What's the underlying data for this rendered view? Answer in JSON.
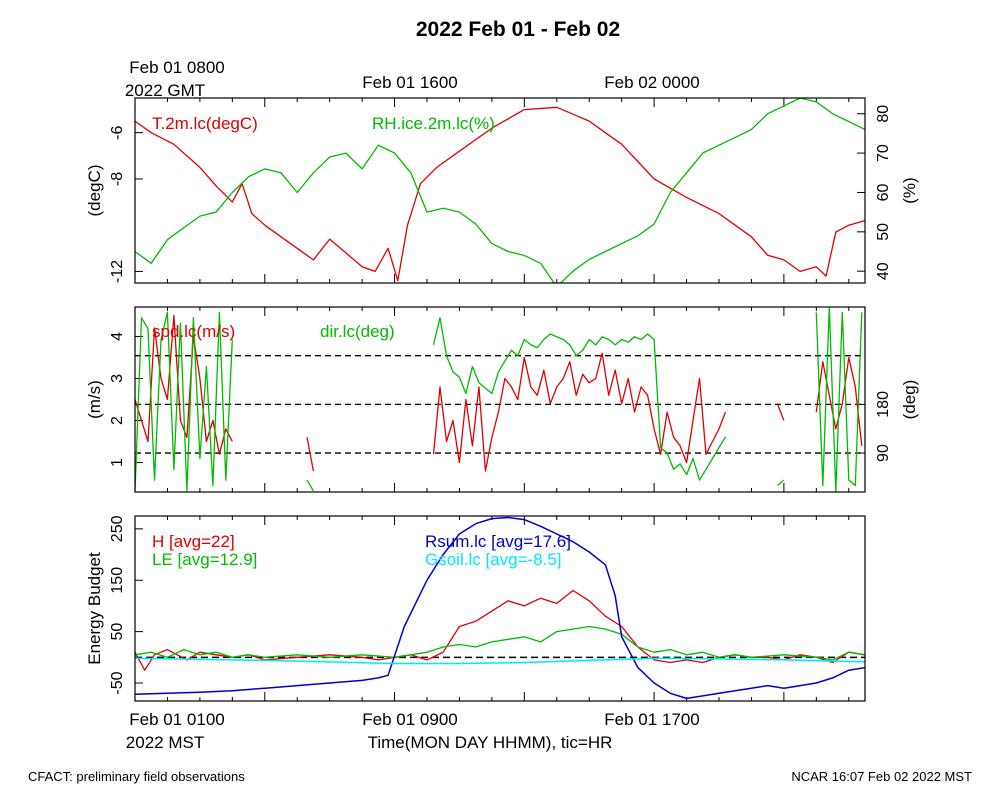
{
  "page": {
    "title": "2022 Feb 01 - Feb 02",
    "top_time_labels": [
      "Feb 01 0800",
      "Feb 01 1600",
      "Feb 02 0000"
    ],
    "top_time_sublabel": "2022 GMT",
    "bottom_time_labels": [
      "Feb 01 0100",
      "Feb 01 0900",
      "Feb 01 1700"
    ],
    "bottom_time_sublabel": "2022 MST",
    "xlabel": "Time(MON DAY HHMM), tic=HR",
    "footer_left": "CFACT: preliminary field observations",
    "footer_right": "NCAR 16:07 Feb 02 2022 MST"
  },
  "chart_data": [
    {
      "type": "line",
      "panel": "temperature-humidity",
      "x_unit": "hours since Feb 01 0100 MST",
      "xlim": [
        0,
        22.5
      ],
      "ylabel": "(degC)",
      "ylabel_right": "(%)",
      "ylim": [
        -12.5,
        -4.5
      ],
      "ylim_right": [
        37,
        84
      ],
      "yticks": [
        -12,
        -8,
        -6
      ],
      "yticks_right": [
        40,
        50,
        60,
        70,
        80
      ],
      "series": [
        {
          "name": "T.2m.lc(degC)",
          "axis": "left",
          "color": "#e00000",
          "x": [
            0,
            0.5,
            1.2,
            2,
            2.5,
            3,
            3.3,
            3.6,
            4,
            4.5,
            5,
            5.5,
            6,
            6.5,
            7,
            7.4,
            7.8,
            8.1,
            8.4,
            8.8,
            9.3,
            10,
            11,
            12,
            13,
            13.5,
            14,
            15,
            16,
            17,
            18,
            18.5,
            19,
            19.5,
            20,
            20.5,
            21,
            21.3,
            21.6,
            22,
            22.5
          ],
          "y": [
            -5.5,
            -6.0,
            -6.5,
            -7.5,
            -8.3,
            -9.0,
            -8.2,
            -9.5,
            -10.0,
            -10.5,
            -11.0,
            -11.5,
            -10.6,
            -11.2,
            -11.8,
            -12.0,
            -11.0,
            -12.4,
            -10.0,
            -8.2,
            -7.5,
            -6.8,
            -5.8,
            -5.0,
            -4.9,
            -5.2,
            -5.5,
            -6.5,
            -8.0,
            -8.8,
            -9.5,
            -10.0,
            -10.5,
            -11.3,
            -11.5,
            -12.0,
            -11.8,
            -12.2,
            -10.3,
            -10.0,
            -9.8
          ]
        },
        {
          "name": "RH.ice.2m.lc(%)",
          "axis": "right",
          "color": "#00bb00",
          "x": [
            0,
            0.5,
            1,
            1.5,
            2,
            2.5,
            3,
            3.5,
            4,
            4.5,
            5,
            5.5,
            6,
            6.5,
            7,
            7.5,
            8,
            8.5,
            9,
            9.5,
            10,
            10.5,
            11,
            11.5,
            12,
            12.5,
            13,
            13.5,
            14,
            14.5,
            15,
            15.5,
            16,
            16.5,
            17,
            17.5,
            18,
            18.5,
            19,
            19.5,
            20,
            20.5,
            21,
            21.5,
            22,
            22.5
          ],
          "y": [
            45,
            42,
            48,
            51,
            54,
            55,
            60,
            64,
            66,
            65,
            60,
            65,
            69,
            70,
            66,
            72,
            70,
            65,
            55,
            56,
            55,
            52,
            47,
            45,
            44,
            42,
            36,
            40,
            43,
            45,
            47,
            49,
            52,
            60,
            65,
            70,
            72,
            74,
            76,
            80,
            82,
            84,
            83,
            80,
            78,
            76
          ]
        }
      ]
    },
    {
      "type": "line",
      "panel": "wind",
      "x_unit": "hours since Feb 01 0100 MST",
      "xlim": [
        0,
        22.5
      ],
      "ylabel": "(m/s)",
      "ylabel_right": "(deg)",
      "ylim": [
        0.3,
        4.7
      ],
      "ylim_right": [
        18,
        360
      ],
      "yticks": [
        1,
        2,
        3,
        4
      ],
      "yticks_right": [
        90,
        180
      ],
      "reference_lines_deg": [
        90,
        180,
        270
      ],
      "series": [
        {
          "name": "spd.lc(m/s)",
          "axis": "left",
          "color": "#e00000",
          "x": [
            0,
            0.2,
            0.4,
            0.6,
            0.8,
            1.0,
            1.2,
            1.4,
            1.6,
            1.8,
            2.0,
            2.2,
            2.4,
            2.6,
            2.8,
            3.0,
            null,
            5.3,
            5.5,
            null,
            9.2,
            9.4,
            9.6,
            9.8,
            10.0,
            10.2,
            10.4,
            10.6,
            10.8,
            11.0,
            11.2,
            11.4,
            11.6,
            11.8,
            12.0,
            12.2,
            12.4,
            12.6,
            12.8,
            13.0,
            13.2,
            13.4,
            13.6,
            13.8,
            14.0,
            14.2,
            14.4,
            14.6,
            14.8,
            15.0,
            15.2,
            15.4,
            15.6,
            15.8,
            16.0,
            16.2,
            16.4,
            16.6,
            16.8,
            17.0,
            17.2,
            17.4,
            17.6,
            17.8,
            18.0,
            18.2,
            null,
            19.8,
            20.0,
            null,
            21.0,
            21.2,
            21.4,
            21.6,
            21.8,
            22.0,
            22.2,
            22.4
          ],
          "y": [
            2.5,
            2.0,
            1.5,
            4.2,
            3.0,
            2.5,
            4.5,
            2.0,
            1.6,
            4.0,
            3.0,
            1.5,
            2.0,
            1.2,
            1.8,
            1.5,
            null,
            1.6,
            0.8,
            null,
            1.2,
            2.8,
            1.5,
            2.0,
            1.0,
            2.5,
            1.4,
            2.8,
            0.8,
            1.6,
            2.2,
            3.0,
            2.8,
            2.5,
            3.5,
            2.8,
            2.6,
            3.2,
            2.4,
            2.8,
            3.0,
            3.4,
            2.6,
            3.1,
            2.9,
            3.0,
            3.6,
            2.6,
            3.2,
            2.4,
            3.0,
            2.2,
            2.8,
            2.6,
            1.8,
            1.2,
            2.2,
            1.6,
            1.4,
            1.0,
            2.0,
            3.0,
            1.2,
            1.5,
            1.8,
            2.2,
            null,
            2.4,
            2.0,
            null,
            2.2,
            3.4,
            2.6,
            1.8,
            2.4,
            3.5,
            2.8,
            1.4
          ],
          "lw": 1.3
        },
        {
          "name": "dir.lc(deg)",
          "axis": "right",
          "color": "#00bb00",
          "x": [
            0,
            0.2,
            0.4,
            0.6,
            0.8,
            1.0,
            1.2,
            1.4,
            1.6,
            1.8,
            2.0,
            2.2,
            2.4,
            2.6,
            2.8,
            3.0,
            null,
            5.3,
            5.5,
            null,
            9.2,
            9.4,
            9.6,
            9.8,
            10.0,
            10.2,
            10.4,
            10.6,
            10.8,
            11.0,
            11.2,
            11.4,
            11.6,
            11.8,
            12.0,
            12.2,
            12.4,
            12.6,
            12.8,
            13.0,
            13.2,
            13.4,
            13.6,
            13.8,
            14.0,
            14.2,
            14.4,
            14.6,
            14.8,
            15.0,
            15.2,
            15.4,
            15.6,
            15.8,
            16.0,
            16.2,
            16.4,
            16.6,
            16.8,
            17.0,
            17.2,
            17.4,
            17.6,
            17.8,
            18.0,
            18.2,
            null,
            19.8,
            20.0,
            null,
            21.0,
            21.2,
            21.4,
            21.6,
            21.8,
            22.0,
            22.2,
            22.4
          ],
          "y": [
            20,
            340,
            320,
            40,
            300,
            350,
            60,
            330,
            20,
            340,
            80,
            250,
            30,
            350,
            40,
            300,
            null,
            40,
            20,
            null,
            290,
            340,
            270,
            240,
            230,
            200,
            250,
            220,
            210,
            200,
            240,
            260,
            280,
            270,
            300,
            290,
            285,
            300,
            310,
            305,
            300,
            290,
            270,
            280,
            300,
            290,
            305,
            300,
            290,
            300,
            295,
            305,
            300,
            310,
            300,
            100,
            90,
            60,
            70,
            50,
            80,
            40,
            60,
            80,
            100,
            120,
            null,
            30,
            40,
            null,
            350,
            30,
            360,
            20,
            350,
            40,
            30,
            350
          ],
          "lw": 1.3
        }
      ]
    },
    {
      "type": "line",
      "panel": "energy-budget",
      "x_unit": "hours since Feb 01 0100 MST",
      "xlim": [
        0,
        22.5
      ],
      "ylabel": "Energy Budget",
      "ylim": [
        -85,
        275
      ],
      "yticks": [
        -50,
        50,
        150,
        250
      ],
      "reference_line": 0,
      "series": [
        {
          "name": "H [avg=22]",
          "axis": "left",
          "color": "#e00000",
          "x": [
            0,
            0.3,
            0.6,
            1,
            1.3,
            1.6,
            2,
            2.5,
            3,
            3.5,
            4,
            5,
            6,
            7,
            7.5,
            8,
            8.5,
            9,
            9.5,
            10,
            10.5,
            11,
            11.5,
            12,
            12.5,
            13,
            13.5,
            14,
            14.5,
            15,
            15.5,
            16,
            16.5,
            17,
            17.5,
            18,
            18.5,
            19,
            19.5,
            20,
            20.5,
            21,
            21.5,
            22,
            22.5
          ],
          "y": [
            10,
            -25,
            5,
            15,
            5,
            -5,
            10,
            5,
            0,
            5,
            -5,
            0,
            5,
            0,
            -5,
            0,
            5,
            -5,
            10,
            60,
            70,
            90,
            110,
            100,
            115,
            105,
            130,
            110,
            80,
            60,
            20,
            -5,
            -10,
            -5,
            -10,
            0,
            5,
            0,
            0,
            -5,
            5,
            0,
            -10,
            10,
            5
          ]
        },
        {
          "name": "LE [avg=12.9]",
          "axis": "left",
          "color": "#00bb00",
          "x": [
            0,
            0.5,
            1,
            1.5,
            2,
            2.5,
            3,
            3.5,
            4,
            5,
            6,
            7,
            8,
            8.5,
            9,
            9.5,
            10,
            10.5,
            11,
            11.5,
            12,
            12.5,
            13,
            13.5,
            14,
            14.5,
            15,
            15.5,
            16,
            16.5,
            17,
            17.5,
            18,
            18.5,
            19,
            20,
            21,
            21.5,
            22,
            22.5
          ],
          "y": [
            5,
            10,
            0,
            15,
            5,
            10,
            0,
            5,
            0,
            5,
            0,
            5,
            0,
            5,
            10,
            20,
            25,
            20,
            30,
            35,
            40,
            30,
            50,
            55,
            60,
            55,
            45,
            20,
            10,
            15,
            5,
            10,
            0,
            5,
            0,
            5,
            0,
            -5,
            10,
            5
          ]
        },
        {
          "name": "Rsum.lc [avg=17.6]",
          "axis": "left",
          "color": "#0000cc",
          "x": [
            0,
            1,
            2,
            3,
            4,
            5,
            6,
            7,
            7.5,
            7.8,
            8.3,
            9,
            9.5,
            10,
            10.5,
            11,
            11.5,
            12,
            12.5,
            13,
            13.5,
            14,
            14.5,
            14.8,
            15,
            15.5,
            16,
            16.5,
            17,
            17.5,
            18,
            18.5,
            19,
            19.5,
            20,
            20.5,
            21,
            21.5,
            22,
            22.5
          ],
          "y": [
            -72,
            -70,
            -68,
            -65,
            -60,
            -55,
            -50,
            -45,
            -40,
            -35,
            60,
            150,
            200,
            240,
            260,
            270,
            272,
            268,
            255,
            240,
            225,
            205,
            180,
            120,
            40,
            -20,
            -50,
            -70,
            -80,
            -75,
            -70,
            -65,
            -60,
            -55,
            -60,
            -55,
            -50,
            -40,
            -25,
            -20
          ],
          "lw": 1.5
        },
        {
          "name": "Gsoil.lc [avg=-8.5]",
          "axis": "left",
          "color": "#00e8ff",
          "x": [
            0,
            2,
            4,
            6,
            8,
            10,
            12,
            14,
            15,
            16,
            18,
            20,
            22,
            22.5
          ],
          "y": [
            -2,
            -4,
            -6,
            -9,
            -12,
            -12,
            -10,
            -6,
            -4,
            -2,
            -3,
            -5,
            -8,
            -9
          ],
          "lw": 1.5
        }
      ]
    }
  ]
}
